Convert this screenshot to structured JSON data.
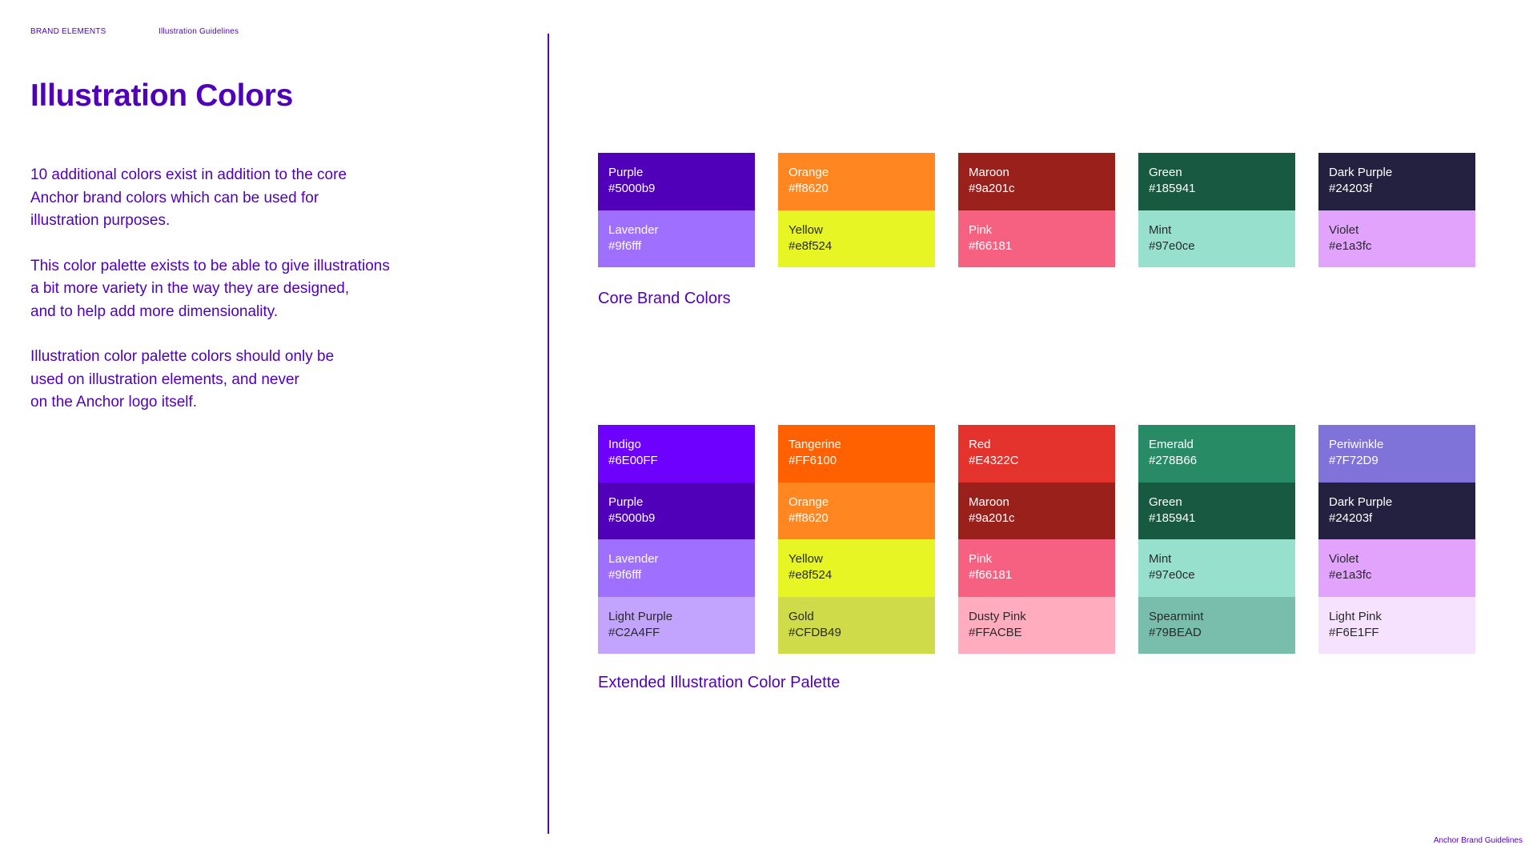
{
  "breadcrumb": {
    "section": "BRAND ELEMENTS",
    "page": "Illustration Guidelines"
  },
  "title": "Illustration Colors",
  "intro": {
    "paragraphs": [
      "10 additional colors exist in addition to the core\nAnchor brand colors which can be used for\nillustration purposes.",
      "This color palette exists to be able to give illustrations\na bit more variety in the way they are designed,\nand to help add more dimensionality.",
      "Illustration color palette colors should only be\nused on illustration elements, and never\non the Anchor logo itself."
    ]
  },
  "core_palette": {
    "label": "Core Brand Colors",
    "columns": [
      [
        {
          "name": "Purple",
          "hex": "#5000b9",
          "color": "#5000b9",
          "text_color": "#ffffff"
        },
        {
          "name": "Lavender",
          "hex": "#9f6fff",
          "color": "#9f6fff",
          "text_color": "#ffffff"
        }
      ],
      [
        {
          "name": "Orange",
          "hex": "#ff8620",
          "color": "#ff8620",
          "text_color": "#ffffff"
        },
        {
          "name": "Yellow",
          "hex": "#e8f524",
          "color": "#e8f524",
          "text_color": "#2a2a2a"
        }
      ],
      [
        {
          "name": "Maroon",
          "hex": "#9a201c",
          "color": "#9a201c",
          "text_color": "#ffffff"
        },
        {
          "name": "Pink",
          "hex": "#f66181",
          "color": "#f66181",
          "text_color": "#ffffff"
        }
      ],
      [
        {
          "name": "Green",
          "hex": "#185941",
          "color": "#185941",
          "text_color": "#ffffff"
        },
        {
          "name": "Mint",
          "hex": "#97e0ce",
          "color": "#97e0ce",
          "text_color": "#2a2a2a"
        }
      ],
      [
        {
          "name": "Dark Purple",
          "hex": "#24203f",
          "color": "#24203f",
          "text_color": "#ffffff"
        },
        {
          "name": "Violet",
          "hex": "#e1a3fc",
          "color": "#e1a3fc",
          "text_color": "#2a2a2a"
        }
      ]
    ]
  },
  "extended_palette": {
    "label": "Extended Illustration Color Palette",
    "columns": [
      [
        {
          "name": "Indigo",
          "hex": "#6E00FF",
          "color": "#6e00ff",
          "text_color": "#ffffff"
        },
        {
          "name": "Purple",
          "hex": "#5000b9",
          "color": "#5000b9",
          "text_color": "#ffffff"
        },
        {
          "name": "Lavender",
          "hex": "#9f6fff",
          "color": "#9f6fff",
          "text_color": "#ffffff"
        },
        {
          "name": "Light Purple",
          "hex": "#C2A4FF",
          "color": "#c2a4ff",
          "text_color": "#2a2a2a"
        }
      ],
      [
        {
          "name": "Tangerine",
          "hex": "#FF6100",
          "color": "#ff6100",
          "text_color": "#ffffff"
        },
        {
          "name": "Orange",
          "hex": "#ff8620",
          "color": "#ff8620",
          "text_color": "#ffffff"
        },
        {
          "name": "Yellow",
          "hex": "#e8f524",
          "color": "#e8f524",
          "text_color": "#2a2a2a"
        },
        {
          "name": "Gold",
          "hex": "#CFDB49",
          "color": "#cfdb49",
          "text_color": "#2a2a2a"
        }
      ],
      [
        {
          "name": "Red",
          "hex": "#E4322C",
          "color": "#e4322c",
          "text_color": "#ffffff"
        },
        {
          "name": "Maroon",
          "hex": "#9a201c",
          "color": "#9a201c",
          "text_color": "#ffffff"
        },
        {
          "name": "Pink",
          "hex": "#f66181",
          "color": "#f66181",
          "text_color": "#ffffff"
        },
        {
          "name": "Dusty Pink",
          "hex": "#FFACBE",
          "color": "#ffacbe",
          "text_color": "#2a2a2a"
        }
      ],
      [
        {
          "name": "Emerald",
          "hex": "#278B66",
          "color": "#278b66",
          "text_color": "#ffffff"
        },
        {
          "name": "Green",
          "hex": "#185941",
          "color": "#185941",
          "text_color": "#ffffff"
        },
        {
          "name": "Mint",
          "hex": "#97e0ce",
          "color": "#97e0ce",
          "text_color": "#2a2a2a"
        },
        {
          "name": "Spearmint",
          "hex": "#79BEAD",
          "color": "#79bead",
          "text_color": "#2a2a2a"
        }
      ],
      [
        {
          "name": "Periwinkle",
          "hex": "#7F72D9",
          "color": "#7f72d9",
          "text_color": "#ffffff"
        },
        {
          "name": "Dark Purple",
          "hex": "#24203f",
          "color": "#24203f",
          "text_color": "#ffffff"
        },
        {
          "name": "Violet",
          "hex": "#e1a3fc",
          "color": "#e1a3fc",
          "text_color": "#2a2a2a"
        },
        {
          "name": "Light Pink",
          "hex": "#F6E1FF",
          "color": "#f6e1ff",
          "text_color": "#2a2a2a"
        }
      ]
    ]
  },
  "footer": "Anchor Brand Guidelines",
  "accent_color": "#5000b9"
}
